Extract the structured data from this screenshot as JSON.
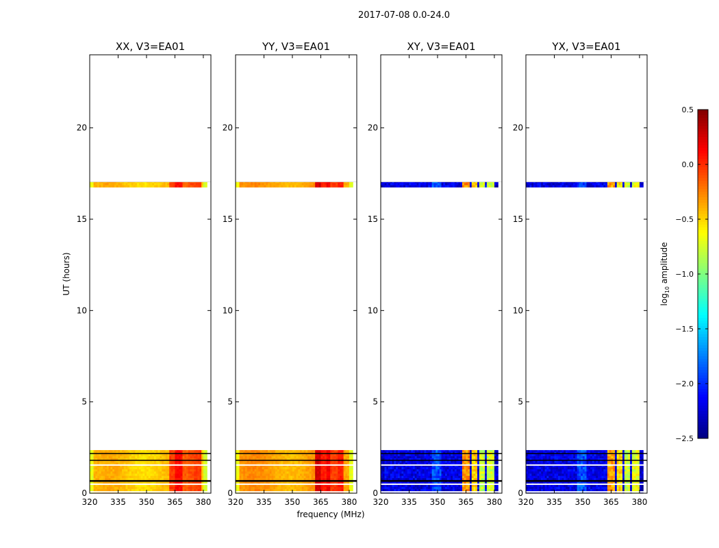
{
  "chart_data": {
    "type": "heatmap",
    "suptitle": "2017-07-08 0.0-24.0",
    "xlabel": "frequency (MHz)",
    "ylabel": "UT (hours)",
    "xlim": [
      320,
      384
    ],
    "ylim": [
      0,
      24
    ],
    "xticks": [
      "320",
      "335",
      "350",
      "365",
      "380"
    ],
    "xtick_values": [
      320,
      335,
      350,
      365,
      380
    ],
    "yticks": [
      "0",
      "5",
      "10",
      "15",
      "20"
    ],
    "ytick_values": [
      0,
      5,
      10,
      15,
      20
    ],
    "colorbar": {
      "label_prefix": "log",
      "label_sub": "10",
      "label_suffix": " amplitude",
      "range": [
        -2.5,
        0.5
      ],
      "ticks": [
        "0.5",
        "0.0",
        "−0.5",
        "−1.0",
        "−1.5",
        "−2.0",
        "−2.5"
      ],
      "tick_values": [
        0.5,
        0.0,
        -0.5,
        -1.0,
        -1.5,
        -2.0,
        -2.5
      ],
      "colormap": "jet"
    },
    "time_blocks": [
      [
        0.0,
        2.36
      ],
      [
        16.75,
        17.05
      ]
    ],
    "flagged_black_hours": [
      0.67,
      1.8,
      2.17
    ],
    "flagged_white_hours": [
      0.07,
      0.49,
      1.54
    ],
    "panels": [
      {
        "title": "XX, V3=EA01",
        "base": -0.45,
        "edge": -0.7,
        "rfi": [
          [
            362,
            365,
            -0.05
          ],
          [
            365,
            369,
            0.1
          ],
          [
            369,
            372,
            -0.15
          ],
          [
            372,
            375,
            -0.1
          ],
          [
            375,
            379,
            -0.05
          ]
        ]
      },
      {
        "title": "YY, V3=EA01",
        "base": -0.35,
        "edge": -0.65,
        "rfi": [
          [
            362,
            365,
            0.25
          ],
          [
            365,
            368,
            0.05
          ],
          [
            368,
            370,
            0.15
          ],
          [
            370,
            374,
            -0.05
          ],
          [
            374,
            377,
            0.05
          ]
        ]
      },
      {
        "title": "XY, V3=EA01",
        "base": -2.2,
        "edge": -2.3,
        "rfi": [
          [
            363,
            367,
            -0.3
          ],
          [
            368,
            371,
            -0.5
          ],
          [
            372,
            375,
            -0.8
          ],
          [
            376,
            380,
            -0.75
          ]
        ]
      },
      {
        "title": "YX, V3=EA01",
        "base": -2.2,
        "edge": -2.3,
        "rfi": [
          [
            363,
            367,
            -0.35
          ],
          [
            368,
            371,
            -0.55
          ],
          [
            372,
            375,
            -0.8
          ],
          [
            376,
            380,
            -0.7
          ]
        ]
      }
    ]
  }
}
